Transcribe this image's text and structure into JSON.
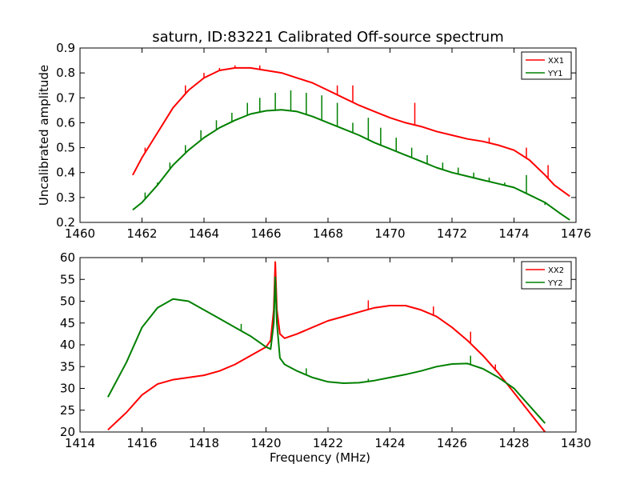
{
  "figure": {
    "title": "saturn, ID:83221 Calibrated Off-source spectrum"
  },
  "colors": {
    "series_1": "#ff0000",
    "series_2": "#008000"
  },
  "chart_data": [
    {
      "type": "line",
      "title": "saturn, ID:83221 Calibrated Off-source spectrum",
      "xlabel": "",
      "ylabel": "Uncalibrated amplitude",
      "xlim": [
        1460,
        1476
      ],
      "ylim": [
        0.2,
        0.9
      ],
      "xticks": [
        1460,
        1462,
        1464,
        1466,
        1468,
        1470,
        1472,
        1474,
        1476
      ],
      "yticks": [
        0.2,
        0.3,
        0.4,
        0.5,
        0.6,
        0.7,
        0.8,
        0.9
      ],
      "xtick_labels": [
        "1460",
        "1462",
        "1464",
        "1466",
        "1468",
        "1470",
        "1472",
        "1474",
        "1476"
      ],
      "ytick_labels": [
        "0.2",
        "0.3",
        "0.4",
        "0.5",
        "0.6",
        "0.7",
        "0.8",
        "0.9"
      ],
      "grid": false,
      "legend_position": "top-right",
      "series": [
        {
          "name": "XX1",
          "color": "#ff0000",
          "x": [
            1461.7,
            1462.0,
            1462.5,
            1463.0,
            1463.5,
            1464.0,
            1464.5,
            1465.0,
            1465.5,
            1466.0,
            1466.5,
            1467.0,
            1467.5,
            1468.0,
            1468.5,
            1469.0,
            1469.5,
            1470.0,
            1470.5,
            1471.0,
            1471.5,
            1472.0,
            1472.5,
            1473.0,
            1473.5,
            1474.0,
            1474.5,
            1475.0,
            1475.3,
            1475.8
          ],
          "y": [
            0.39,
            0.46,
            0.56,
            0.66,
            0.73,
            0.78,
            0.81,
            0.82,
            0.82,
            0.81,
            0.8,
            0.78,
            0.76,
            0.73,
            0.7,
            0.67,
            0.645,
            0.62,
            0.6,
            0.585,
            0.565,
            0.55,
            0.535,
            0.525,
            0.51,
            0.49,
            0.45,
            0.39,
            0.35,
            0.305
          ],
          "spikes": [
            {
              "x": 1462.1,
              "top": 0.5
            },
            {
              "x": 1463.4,
              "top": 0.75
            },
            {
              "x": 1464.0,
              "top": 0.8
            },
            {
              "x": 1464.5,
              "top": 0.82
            },
            {
              "x": 1465.0,
              "top": 0.83
            },
            {
              "x": 1465.8,
              "top": 0.83
            },
            {
              "x": 1468.3,
              "top": 0.75
            },
            {
              "x": 1468.8,
              "top": 0.75
            },
            {
              "x": 1470.8,
              "top": 0.68
            },
            {
              "x": 1473.2,
              "top": 0.54
            },
            {
              "x": 1474.4,
              "top": 0.5
            },
            {
              "x": 1475.1,
              "top": 0.43
            }
          ]
        },
        {
          "name": "YY1",
          "color": "#008000",
          "x": [
            1461.7,
            1462.0,
            1462.5,
            1463.0,
            1463.5,
            1464.0,
            1464.5,
            1465.0,
            1465.5,
            1466.0,
            1466.5,
            1467.0,
            1467.5,
            1468.0,
            1468.5,
            1469.0,
            1469.5,
            1470.0,
            1470.5,
            1471.0,
            1471.5,
            1472.0,
            1472.5,
            1473.0,
            1473.5,
            1474.0,
            1474.5,
            1475.0,
            1475.5,
            1475.8
          ],
          "y": [
            0.25,
            0.28,
            0.35,
            0.43,
            0.49,
            0.54,
            0.58,
            0.61,
            0.635,
            0.648,
            0.652,
            0.645,
            0.625,
            0.6,
            0.575,
            0.55,
            0.52,
            0.495,
            0.47,
            0.445,
            0.42,
            0.4,
            0.385,
            0.37,
            0.355,
            0.34,
            0.31,
            0.28,
            0.235,
            0.21
          ],
          "spikes": [
            {
              "x": 1462.1,
              "top": 0.32
            },
            {
              "x": 1462.5,
              "top": 0.36
            },
            {
              "x": 1462.9,
              "top": 0.44
            },
            {
              "x": 1463.4,
              "top": 0.51
            },
            {
              "x": 1463.9,
              "top": 0.57
            },
            {
              "x": 1464.4,
              "top": 0.61
            },
            {
              "x": 1464.9,
              "top": 0.64
            },
            {
              "x": 1465.4,
              "top": 0.68
            },
            {
              "x": 1465.8,
              "top": 0.7
            },
            {
              "x": 1466.3,
              "top": 0.72
            },
            {
              "x": 1466.8,
              "top": 0.73
            },
            {
              "x": 1467.3,
              "top": 0.72
            },
            {
              "x": 1467.8,
              "top": 0.71
            },
            {
              "x": 1468.3,
              "top": 0.68
            },
            {
              "x": 1468.8,
              "top": 0.6
            },
            {
              "x": 1469.3,
              "top": 0.62
            },
            {
              "x": 1469.7,
              "top": 0.58
            },
            {
              "x": 1470.2,
              "top": 0.54
            },
            {
              "x": 1470.7,
              "top": 0.5
            },
            {
              "x": 1471.2,
              "top": 0.47
            },
            {
              "x": 1471.7,
              "top": 0.44
            },
            {
              "x": 1472.2,
              "top": 0.42
            },
            {
              "x": 1472.7,
              "top": 0.4
            },
            {
              "x": 1473.2,
              "top": 0.38
            },
            {
              "x": 1473.7,
              "top": 0.36
            },
            {
              "x": 1474.0,
              "top": 0.34
            },
            {
              "x": 1474.4,
              "top": 0.39
            },
            {
              "x": 1475.0,
              "top": 0.27
            }
          ]
        }
      ]
    },
    {
      "type": "line",
      "title": "",
      "xlabel": "Frequency (MHz)",
      "ylabel": "",
      "xlim": [
        1414,
        1430
      ],
      "ylim": [
        20,
        60
      ],
      "xticks": [
        1414,
        1416,
        1418,
        1420,
        1422,
        1424,
        1426,
        1428,
        1430
      ],
      "yticks": [
        20,
        25,
        30,
        35,
        40,
        45,
        50,
        55,
        60
      ],
      "xtick_labels": [
        "1414",
        "1416",
        "1418",
        "1420",
        "1422",
        "1424",
        "1426",
        "1428",
        "1430"
      ],
      "ytick_labels": [
        "20",
        "25",
        "30",
        "35",
        "40",
        "45",
        "50",
        "55",
        "60"
      ],
      "grid": false,
      "legend_position": "top-right",
      "series": [
        {
          "name": "XX2",
          "color": "#ff0000",
          "x": [
            1414.9,
            1415.5,
            1416.0,
            1416.5,
            1417.0,
            1417.5,
            1418.0,
            1418.5,
            1419.0,
            1419.5,
            1420.0,
            1420.15,
            1420.25,
            1420.3,
            1420.35,
            1420.45,
            1420.6,
            1421.0,
            1421.5,
            1422.0,
            1422.5,
            1423.0,
            1423.5,
            1424.0,
            1424.5,
            1425.0,
            1425.5,
            1426.0,
            1426.5,
            1427.0,
            1427.5,
            1428.0,
            1428.5,
            1429.0
          ],
          "y": [
            20.5,
            24.5,
            28.5,
            31.0,
            32.0,
            32.5,
            33.0,
            34.0,
            35.5,
            37.5,
            39.5,
            41.0,
            48.0,
            59.0,
            48.0,
            42.5,
            41.5,
            42.5,
            44.0,
            45.5,
            46.5,
            47.5,
            48.5,
            49.0,
            49.0,
            48.0,
            46.5,
            44.0,
            41.0,
            37.5,
            33.5,
            29.0,
            24.5,
            20.0
          ],
          "spikes": [
            {
              "x": 1423.3,
              "top": 50.2
            },
            {
              "x": 1425.4,
              "top": 48.8
            },
            {
              "x": 1426.6,
              "top": 43.0
            },
            {
              "x": 1427.4,
              "top": 35.5
            }
          ]
        },
        {
          "name": "YY2",
          "color": "#008000",
          "x": [
            1414.9,
            1415.5,
            1416.0,
            1416.5,
            1417.0,
            1417.5,
            1418.0,
            1418.5,
            1419.0,
            1419.5,
            1420.0,
            1420.15,
            1420.25,
            1420.3,
            1420.35,
            1420.45,
            1420.6,
            1421.0,
            1421.5,
            1422.0,
            1422.5,
            1423.0,
            1423.5,
            1424.0,
            1424.5,
            1425.0,
            1425.5,
            1426.0,
            1426.5,
            1427.0,
            1427.5,
            1428.0,
            1428.5,
            1429.0
          ],
          "y": [
            28.0,
            36.0,
            44.0,
            48.5,
            50.5,
            50.0,
            48.0,
            46.0,
            44.0,
            42.0,
            39.5,
            39.0,
            45.0,
            55.5,
            45.0,
            37.0,
            35.5,
            34.0,
            32.5,
            31.5,
            31.2,
            31.3,
            31.8,
            32.5,
            33.2,
            34.0,
            35.0,
            35.6,
            35.7,
            34.5,
            32.5,
            30.0,
            26.0,
            22.0
          ],
          "spikes": [
            {
              "x": 1419.2,
              "top": 44.8
            },
            {
              "x": 1421.3,
              "top": 34.6
            },
            {
              "x": 1423.3,
              "top": 32.2
            },
            {
              "x": 1426.6,
              "top": 37.5
            }
          ]
        }
      ]
    }
  ]
}
